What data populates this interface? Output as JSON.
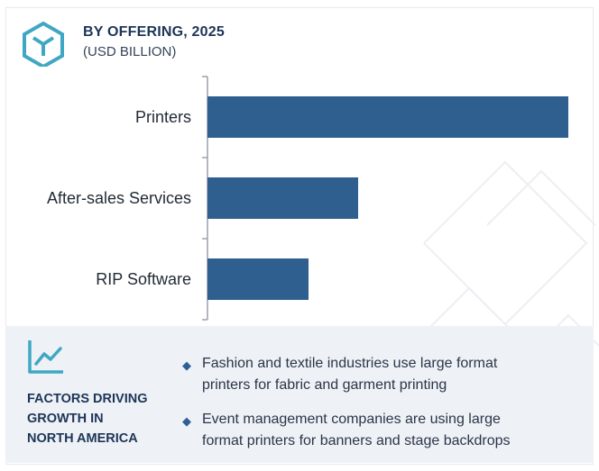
{
  "header": {
    "title": "BY OFFERING, 2025",
    "subtitle": "(USD BILLION)"
  },
  "colors": {
    "bar": "#2e5f8e",
    "accent": "#3fa7c4",
    "heading": "#1d3557",
    "footer_bg": "#eef1f6"
  },
  "icons": {
    "logo": "hexagon-cube-logo",
    "trend": "trend-chart-icon",
    "bullet": "diamond-bullet-icon"
  },
  "chart_data": {
    "type": "bar",
    "orientation": "horizontal",
    "categories": [
      "Printers",
      "After-sales Services",
      "RIP Software"
    ],
    "values": [
      4.0,
      1.67,
      1.12
    ],
    "xlim": [
      0,
      4.2
    ],
    "axis_labels_shown": false,
    "grid": false
  },
  "footer": {
    "heading_lines": [
      "FACTORS DRIVING",
      "GROWTH IN",
      "NORTH AMERICA"
    ],
    "bullets": [
      {
        "lines": [
          "Fashion and textile industries use large format",
          "printers for fabric and garment printing"
        ]
      },
      {
        "lines": [
          "Event management companies are using large",
          "format printers for banners and stage backdrops"
        ]
      }
    ]
  }
}
